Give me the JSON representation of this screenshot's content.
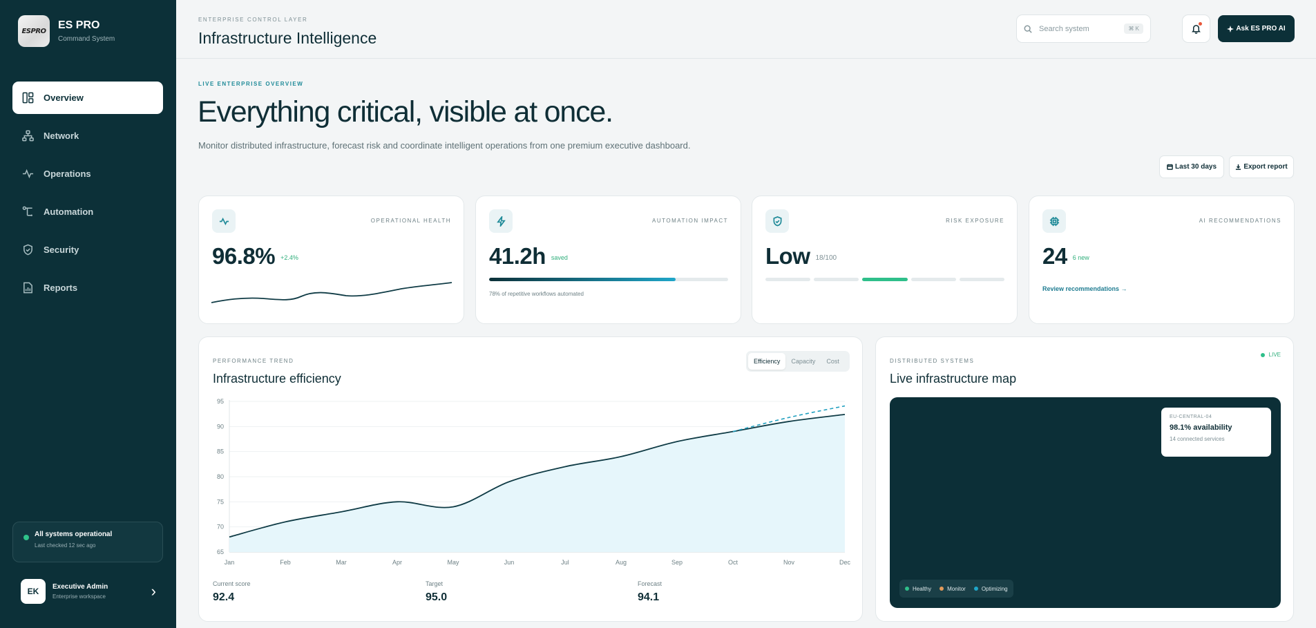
{
  "brand": {
    "logo_text": "ESPRO",
    "name": "ES PRO",
    "subtitle": "Command System"
  },
  "sidebar": {
    "items": [
      {
        "label": "Overview",
        "icon": "layout-icon",
        "active": true
      },
      {
        "label": "Network",
        "icon": "network-icon"
      },
      {
        "label": "Operations",
        "icon": "activity-icon"
      },
      {
        "label": "Automation",
        "icon": "workflow-icon"
      },
      {
        "label": "Security",
        "icon": "shield-icon"
      },
      {
        "label": "Reports",
        "icon": "report-icon"
      }
    ],
    "status": {
      "title": "All systems operational",
      "sub": "Last checked 12 sec ago",
      "color": "#2fc38a"
    },
    "user": {
      "initials": "EK",
      "name": "Executive Admin",
      "workspace": "Enterprise workspace"
    }
  },
  "header": {
    "eyebrow": "ENTERPRISE CONTROL LAYER",
    "title": "Infrastructure Intelligence",
    "search_placeholder": "Search system",
    "search_shortcut": "⌘ K",
    "ask_label": "Ask ES PRO AI"
  },
  "hero": {
    "eyebrow": "LIVE ENTERPRISE OVERVIEW",
    "title": "Everything critical, visible at once.",
    "description": "Monitor distributed infrastructure, forecast risk and coordinate intelligent operations from one premium executive dashboard.",
    "range_label": "Last 30 days",
    "export_label": "Export report"
  },
  "kpis": {
    "health": {
      "label": "OPERATIONAL HEALTH",
      "value": "96.8%",
      "delta": "+2.4%"
    },
    "automation": {
      "label": "AUTOMATION IMPACT",
      "value": "41.2h",
      "unit": "saved",
      "progress": 0.78,
      "note": "78% of repetitive workflows automated"
    },
    "risk": {
      "label": "RISK EXPOSURE",
      "value": "Low",
      "score": "18/100",
      "segments": 5,
      "active_segment": 3
    },
    "ai": {
      "label": "AI RECOMMENDATIONS",
      "value": "24",
      "new": "6 new",
      "link": "Review recommendations →"
    }
  },
  "performance": {
    "eyebrow": "PERFORMANCE TREND",
    "title": "Infrastructure efficiency",
    "tabs": [
      "Efficiency",
      "Capacity",
      "Cost"
    ],
    "active_tab": 0,
    "stats": [
      {
        "label": "Current score",
        "value": "92.4"
      },
      {
        "label": "Target",
        "value": "95.0"
      },
      {
        "label": "Forecast",
        "value": "94.1"
      }
    ]
  },
  "chart_data": {
    "type": "area",
    "categories": [
      "Jan",
      "Feb",
      "Mar",
      "Apr",
      "May",
      "Jun",
      "Jul",
      "Aug",
      "Sep",
      "Oct",
      "Nov",
      "Dec"
    ],
    "values": [
      68,
      71,
      73,
      75,
      74,
      79,
      82,
      84,
      87,
      89,
      91,
      92.4
    ],
    "forecast": {
      "x": [
        "Oct",
        "Nov",
        "Dec"
      ],
      "values": [
        89,
        91.8,
        94.1
      ]
    },
    "ylim": [
      65,
      95
    ],
    "yticks": [
      65,
      70,
      75,
      80,
      85,
      90,
      95
    ],
    "grid": true,
    "line_color": "#0f3b45",
    "fill_color": "#e6f6fb",
    "forecast_color": "#1f9fbf"
  },
  "map": {
    "eyebrow": "DISTRIBUTED SYSTEMS",
    "title": "Live infrastructure map",
    "live": "LIVE",
    "region": {
      "code": "EU-CENTRAL-04",
      "availability": "98.1% availability",
      "services": "14 connected services"
    },
    "legend": [
      {
        "label": "Healthy",
        "color": "#2fbf8a"
      },
      {
        "label": "Monitor",
        "color": "#e39a5a"
      },
      {
        "label": "Optimizing",
        "color": "#1fa6c9"
      }
    ]
  }
}
